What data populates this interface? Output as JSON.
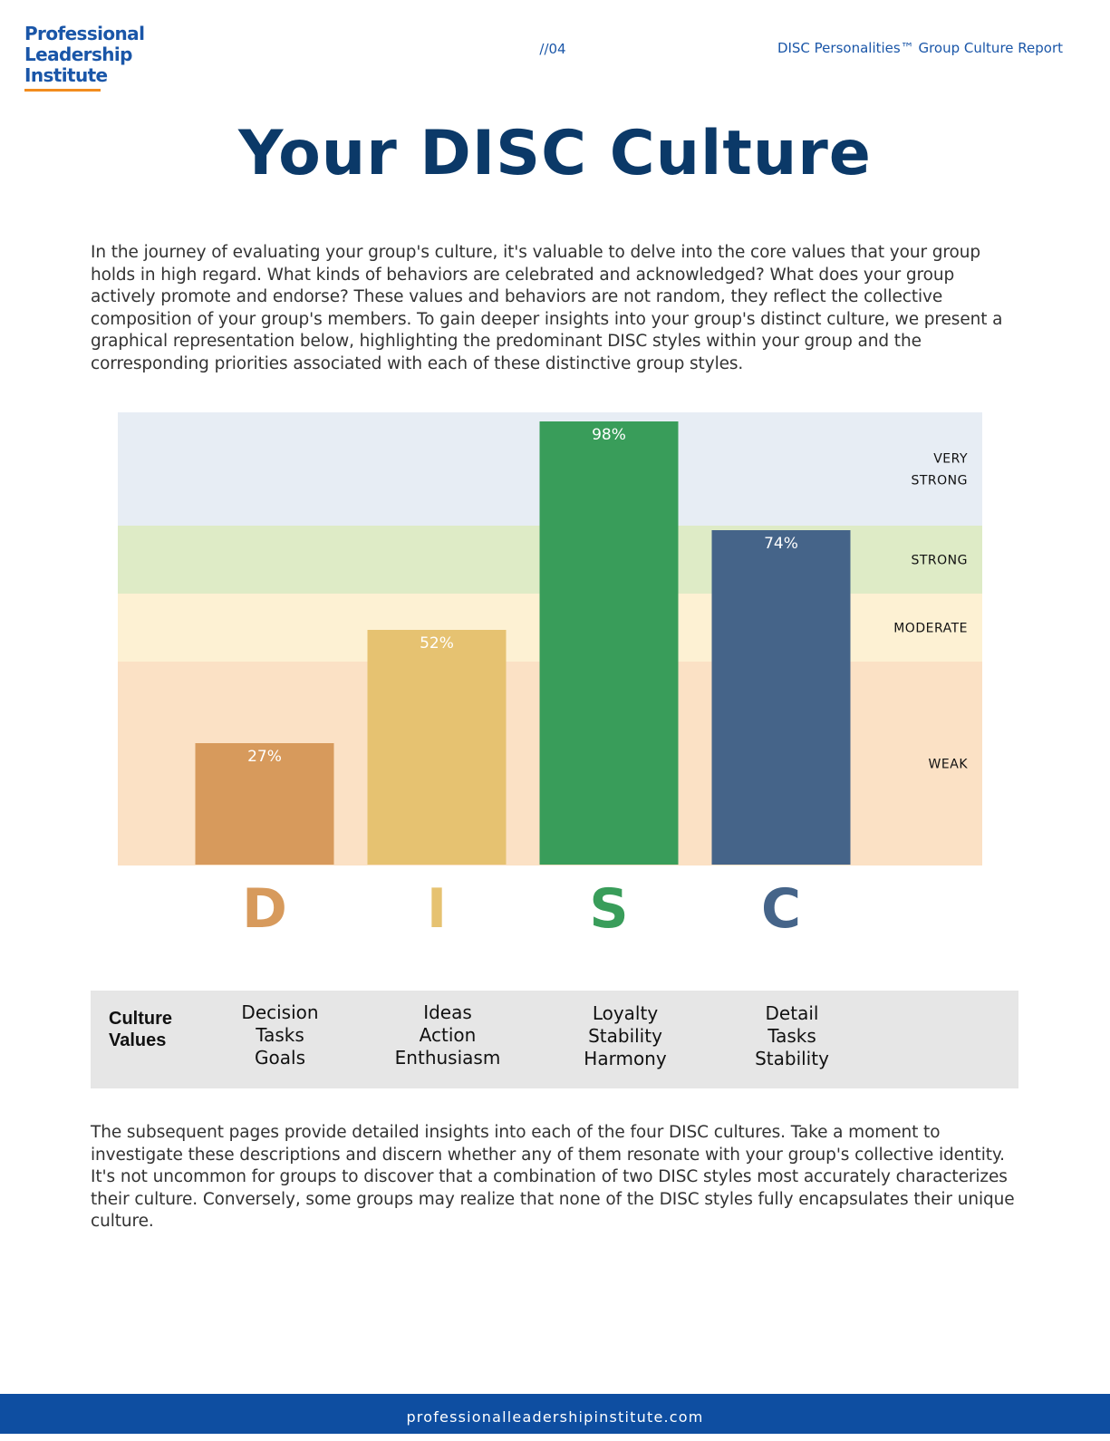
{
  "header": {
    "logo_lines": [
      "Professional",
      "Leadership",
      "Institute"
    ],
    "page_number": "//04",
    "report_title": "DISC Personalities™ Group Culture Report"
  },
  "title": "Your DISC Culture",
  "intro": "In the journey of evaluating your group's culture, it's valuable to delve into the core values that your group holds in high regard. What kinds of behaviors are celebrated and acknowledged? What does your group actively promote and endorse? These values and behaviors are not random, they reflect the collective composition of your group's members. To gain deeper insights into your group's distinct culture, we present a graphical representation below, highlighting the predominant DISC styles within your group and the corresponding priorities associated with each of these distinctive group styles.",
  "chart_data": {
    "type": "bar",
    "categories": [
      "D",
      "I",
      "S",
      "C"
    ],
    "values": [
      27,
      52,
      98,
      74
    ],
    "value_labels": [
      "27%",
      "52%",
      "98%",
      "74%"
    ],
    "colors": [
      "#d79a5c",
      "#e6c271",
      "#399d5a",
      "#456489"
    ],
    "ylim": [
      0,
      100
    ],
    "bands": [
      {
        "label": [
          "WEAK"
        ],
        "from": 0,
        "to": 45,
        "color": "#fbe1c5"
      },
      {
        "label": [
          "MODERATE"
        ],
        "from": 45,
        "to": 60,
        "color": "#fdf1d3"
      },
      {
        "label": [
          "STRONG"
        ],
        "from": 60,
        "to": 75,
        "color": "#deebc6"
      },
      {
        "label": [
          "VERY",
          "STRONG"
        ],
        "from": 75,
        "to": 100,
        "color": "#e7edf4"
      }
    ]
  },
  "culture_values": {
    "label_lines": [
      "Culture",
      "Values"
    ],
    "columns": [
      [
        "Decision",
        "Tasks",
        "Goals"
      ],
      [
        "Ideas",
        "Action",
        "Enthusiasm"
      ],
      [
        "Loyalty",
        "Stability",
        "Harmony"
      ],
      [
        "Detail",
        "Tasks",
        "Stability"
      ]
    ]
  },
  "outro": "The subsequent pages provide detailed insights into each of the four DISC cultures. Take a moment to investigate these descriptions and discern whether any of them resonate with your group's collective identity. It's not uncommon for groups to discover that a combination of two DISC styles most accurately characterizes their culture. Conversely, some groups may realize that none of the DISC styles fully encapsulates their unique culture.",
  "footer": {
    "url": "professionalleadershipinstitute.com"
  }
}
